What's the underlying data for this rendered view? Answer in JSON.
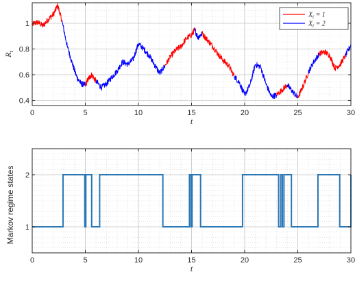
{
  "chart_data": [
    {
      "type": "line",
      "xlabel": "t",
      "ylabel": "R_t",
      "xlim": [
        0,
        30
      ],
      "ylim": [
        0.36,
        1.16
      ],
      "xticks": [
        "0",
        "5",
        "10",
        "15",
        "20",
        "25",
        "30"
      ],
      "yticks": [
        "0.4",
        "0.6",
        "0.8",
        "1"
      ],
      "grid": true,
      "minor_grid": true,
      "legend_position": "top-right",
      "series": [
        {
          "name": "X_t = 1",
          "label_main": "X",
          "label_sub": "t",
          "label_rest": " = 1",
          "color": "#ff0000"
        },
        {
          "name": "X_t = 2",
          "label_main": "X",
          "label_sub": "t",
          "label_rest": " = 2",
          "color": "#0000ff"
        }
      ],
      "x": [
        0,
        0.5,
        1,
        1.5,
        2,
        2.4,
        2.8,
        3.3,
        3.8,
        4.2,
        4.6,
        5.0,
        5.3,
        5.6,
        6.0,
        6.5,
        7.0,
        7.5,
        8.0,
        8.5,
        9.0,
        9.5,
        10.0,
        10.5,
        11.0,
        11.5,
        12.0,
        12.5,
        13.0,
        13.5,
        14.0,
        14.5,
        15.0,
        15.3,
        15.6,
        16.0,
        16.5,
        17.0,
        17.5,
        18.0,
        18.5,
        19.0,
        19.5,
        20.0,
        20.5,
        21.0,
        21.5,
        22.0,
        22.5,
        23.0,
        23.5,
        24.0,
        24.5,
        25.0,
        25.5,
        26.0,
        26.5,
        27.0,
        27.5,
        28.0,
        28.5,
        29.0,
        29.5,
        30.0
      ],
      "y": [
        0.99,
        1.01,
        0.98,
        1.03,
        1.07,
        1.14,
        1.02,
        0.82,
        0.68,
        0.58,
        0.53,
        0.52,
        0.57,
        0.6,
        0.55,
        0.5,
        0.53,
        0.58,
        0.63,
        0.7,
        0.68,
        0.72,
        0.84,
        0.8,
        0.75,
        0.68,
        0.61,
        0.67,
        0.74,
        0.79,
        0.82,
        0.88,
        0.91,
        0.95,
        0.89,
        0.92,
        0.87,
        0.82,
        0.76,
        0.71,
        0.67,
        0.59,
        0.54,
        0.44,
        0.52,
        0.68,
        0.66,
        0.53,
        0.43,
        0.44,
        0.48,
        0.52,
        0.47,
        0.42,
        0.51,
        0.62,
        0.7,
        0.76,
        0.78,
        0.75,
        0.65,
        0.68,
        0.75,
        0.83
      ],
      "regime": [
        1,
        1,
        1,
        1,
        1,
        1,
        2,
        2,
        2,
        2,
        2,
        1,
        1,
        1,
        2,
        2,
        2,
        2,
        2,
        2,
        2,
        2,
        2,
        2,
        2,
        2,
        2,
        1,
        1,
        1,
        1,
        1,
        1,
        2,
        2,
        1,
        1,
        1,
        1,
        1,
        1,
        2,
        2,
        2,
        2,
        2,
        2,
        2,
        2,
        1,
        1,
        2,
        2,
        1,
        1,
        2,
        2,
        1,
        1,
        1,
        1,
        1,
        2,
        2
      ]
    },
    {
      "type": "line",
      "xlabel": "t",
      "ylabel": "Markov regime states",
      "xlim": [
        0,
        30
      ],
      "ylim": [
        0.5,
        2.5
      ],
      "xticks": [
        "0",
        "5",
        "10",
        "15",
        "20",
        "25",
        "30"
      ],
      "yticks": [
        "1",
        "2"
      ],
      "grid": true,
      "minor_grid": true,
      "series": [
        {
          "color": "#2a77b5",
          "step_times": [
            0,
            2.9,
            4.95,
            5.05,
            5.6,
            6.35,
            12.3,
            14.8,
            14.95,
            15.05,
            15.85,
            19.8,
            23.2,
            23.4,
            23.55,
            23.7,
            24.4,
            26.9,
            28.95,
            30
          ],
          "step_values": [
            1,
            2,
            1,
            2,
            1,
            2,
            1,
            2,
            1,
            2,
            1,
            2,
            1,
            2,
            1,
            2,
            1,
            2,
            1,
            2
          ]
        }
      ]
    }
  ]
}
